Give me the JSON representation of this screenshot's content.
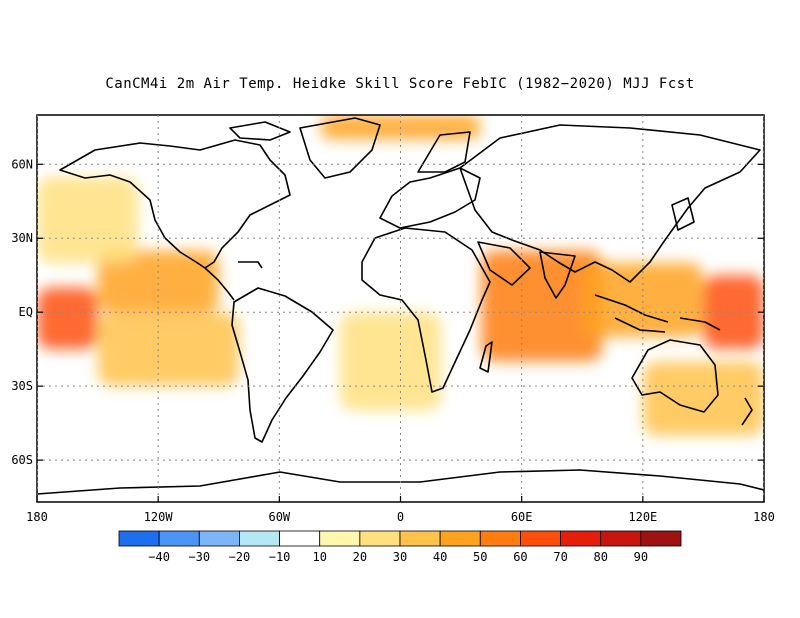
{
  "title": "CanCM4i 2m Air Temp. Heidke Skill Score FebIC (1982−2020) MJJ Fcst",
  "map": {
    "projection": "equirectangular",
    "lon_range": [
      -180,
      180
    ],
    "lat_range": [
      -77,
      80
    ],
    "grid": "dotted",
    "lat_ticks": [
      {
        "lat": 60,
        "label": "60N"
      },
      {
        "lat": 30,
        "label": "30N"
      },
      {
        "lat": 0,
        "label": "EQ"
      },
      {
        "lat": -30,
        "label": "30S"
      },
      {
        "lat": -60,
        "label": "60S"
      }
    ],
    "lon_ticks": [
      {
        "lon": -180,
        "label": "180"
      },
      {
        "lon": -120,
        "label": "120W"
      },
      {
        "lon": -60,
        "label": "60W"
      },
      {
        "lon": 0,
        "label": "0"
      },
      {
        "lon": 60,
        "label": "60E"
      },
      {
        "lon": 120,
        "label": "120E"
      },
      {
        "lon": 180,
        "label": "180"
      }
    ]
  },
  "colorbar": {
    "labels": [
      "−40",
      "−30",
      "−20",
      "−10",
      "10",
      "20",
      "30",
      "40",
      "50",
      "60",
      "70",
      "80",
      "90"
    ],
    "colors": [
      "#1e6ff0",
      "#4c94f5",
      "#7db6f7",
      "#b4e8f5",
      "#ffffff",
      "#fff6b0",
      "#ffe07f",
      "#ffc24a",
      "#ffa21f",
      "#ff7d0f",
      "#ff4f0a",
      "#e61d0a",
      "#c8160e",
      "#a01212"
    ]
  },
  "chart_data": {
    "type": "heatmap",
    "variable": "2m Air Temp. Heidke Skill Score",
    "model": "CanCM4i",
    "init": "FebIC",
    "period": "1982−2020",
    "target": "MJJ",
    "colorbar_ticks": [
      -40,
      -30,
      -20,
      -10,
      10,
      20,
      30,
      40,
      50,
      60,
      70,
      80,
      90
    ],
    "regions": [
      {
        "lon_min": 150,
        "lon_max": 180,
        "lat_min": -15,
        "lat_max": 15,
        "value": 60
      },
      {
        "lon_min": -180,
        "lon_max": -150,
        "lat_min": -15,
        "lat_max": 10,
        "value": 60
      },
      {
        "lon_min": -150,
        "lon_max": -90,
        "lat_min": 0,
        "lat_max": 25,
        "value": 45
      },
      {
        "lon_min": -150,
        "lon_max": -80,
        "lat_min": -30,
        "lat_max": 0,
        "value": 35
      },
      {
        "lon_min": -180,
        "lon_max": -130,
        "lat_min": 20,
        "lat_max": 55,
        "value": 25
      },
      {
        "lon_min": 40,
        "lon_max": 100,
        "lat_min": -20,
        "lat_max": 25,
        "value": 50
      },
      {
        "lon_min": 90,
        "lon_max": 150,
        "lat_min": -10,
        "lat_max": 20,
        "value": 45
      },
      {
        "lon_min": -30,
        "lon_max": 20,
        "lat_min": -40,
        "lat_max": 0,
        "value": 25
      },
      {
        "lon_min": -40,
        "lon_max": 40,
        "lat_min": 70,
        "lat_max": 80,
        "value": 40
      },
      {
        "lon_min": 120,
        "lon_max": 180,
        "lat_min": -50,
        "lat_max": -20,
        "value": 35
      },
      {
        "lon_min": -180,
        "lon_max": -120,
        "lat_min": 60,
        "lat_max": 80,
        "value": -10
      },
      {
        "lon_min": -60,
        "lon_max": -20,
        "lat_min": -60,
        "lat_max": -45,
        "value": -10
      }
    ]
  }
}
